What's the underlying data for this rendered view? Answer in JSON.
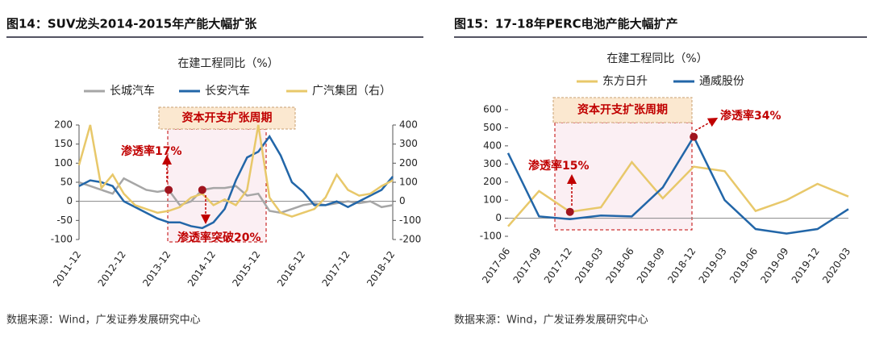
{
  "chart_data": [
    {
      "type": "line",
      "title": "图14：SUV龙头2014-2015年产能大幅扩张",
      "subtitle": "在建工程同比（%）",
      "categories": [
        "2011-12",
        null,
        null,
        null,
        "2012-12",
        null,
        null,
        null,
        "2013-12",
        null,
        null,
        null,
        "2014-12",
        null,
        null,
        null,
        "2015-12",
        null,
        null,
        null,
        "2016-12",
        null,
        null,
        null,
        "2017-12",
        null,
        null,
        null,
        "2018-12"
      ],
      "series": [
        {
          "name": "长城汽车",
          "color": "#a6a6a6",
          "values": [
            50,
            40,
            30,
            20,
            60,
            45,
            30,
            25,
            30,
            -10,
            0,
            30,
            35,
            35,
            40,
            15,
            20,
            -25,
            -30,
            -20,
            -10,
            -5,
            -10,
            -5,
            0,
            -5,
            0,
            -15,
            -10
          ]
        },
        {
          "name": "长安汽车",
          "color": "#2266a8",
          "values": [
            40,
            55,
            50,
            40,
            0,
            -15,
            -30,
            -45,
            -55,
            -55,
            -65,
            -70,
            -55,
            -20,
            55,
            115,
            130,
            170,
            120,
            50,
            25,
            -10,
            -10,
            0,
            -15,
            0,
            15,
            30,
            65
          ]
        },
        {
          "name": "广汽集团（右）",
          "color": "#e8c86a",
          "axis": "y2",
          "values": [
            190,
            400,
            70,
            140,
            40,
            -20,
            -40,
            -60,
            -50,
            -30,
            20,
            40,
            -20,
            10,
            -20,
            60,
            400,
            20,
            -60,
            -80,
            -60,
            -40,
            20,
            140,
            60,
            30,
            40,
            80,
            110
          ]
        }
      ],
      "ylim": [
        -100,
        200
      ],
      "yticks": [
        -100,
        -50,
        0,
        50,
        100,
        150,
        200
      ],
      "y2lim": [
        -200,
        400
      ],
      "y2ticks": [
        -200,
        -100,
        0,
        100,
        200,
        300,
        400
      ],
      "legend": "top",
      "annotations": [
        "资本开支扩张周期",
        "渗透率17%",
        "渗透率突破20%"
      ],
      "source": "数据来源：Wind，广发证券发展研究中心"
    },
    {
      "type": "line",
      "title": "图15：17-18年PERC电池产能大幅扩产",
      "subtitle": "在建工程同比（%）",
      "categories": [
        "2017-06",
        "2017-09",
        "2017-12",
        "2018-03",
        "2018-06",
        "2018-09",
        "2018-12",
        "2019-03",
        "2019-06",
        "2019-09",
        "2019-12",
        "2020-03"
      ],
      "series": [
        {
          "name": "东方日升",
          "color": "#e8c86a",
          "values": [
            -45,
            150,
            35,
            60,
            310,
            110,
            285,
            260,
            40,
            100,
            190,
            120
          ]
        },
        {
          "name": "通威股份",
          "color": "#2266a8",
          "values": [
            360,
            10,
            -5,
            15,
            10,
            170,
            450,
            100,
            -60,
            -85,
            -60,
            50
          ]
        }
      ],
      "ylim": [
        -100,
        600
      ],
      "yticks": [
        -100,
        0,
        100,
        200,
        300,
        400,
        500,
        600
      ],
      "legend": "top",
      "annotations": [
        "资本开支扩张周期",
        "渗透率15%",
        "渗透率34%"
      ],
      "source": "数据来源：Wind，广发证券发展研究中心"
    }
  ]
}
